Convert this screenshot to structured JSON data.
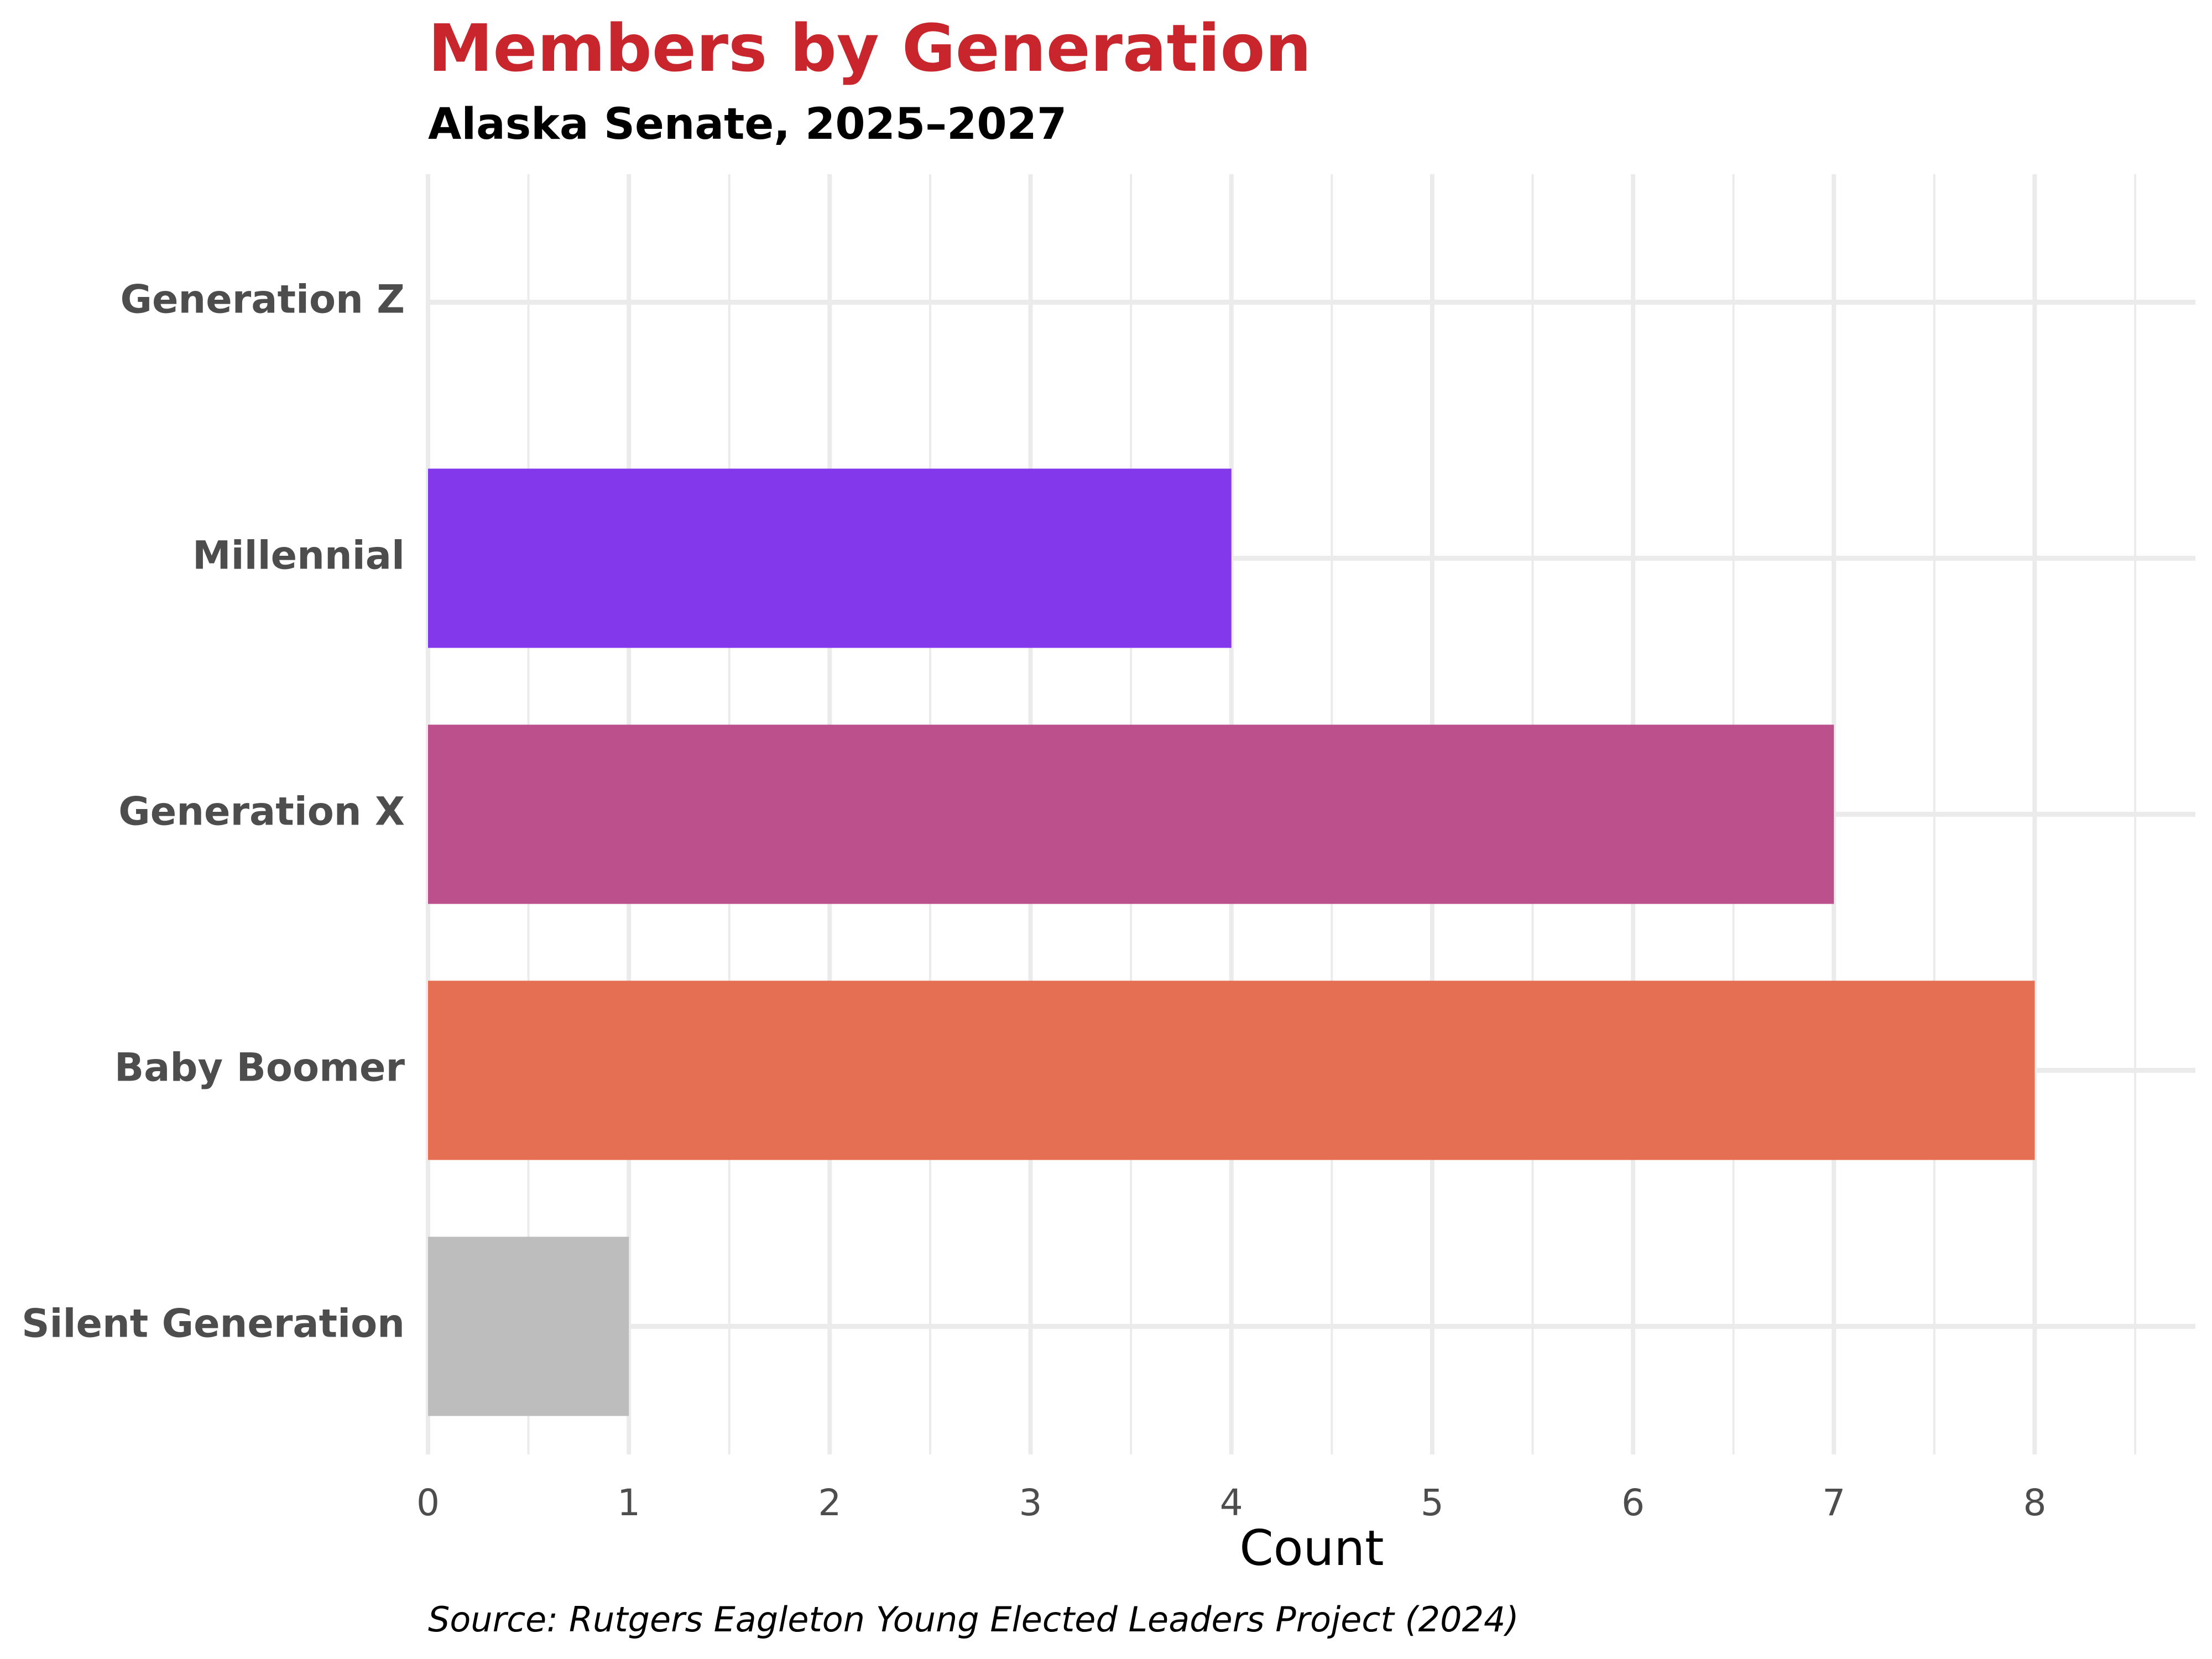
{
  "chart_data": {
    "type": "bar",
    "orientation": "horizontal",
    "title": "Members by Generation",
    "subtitle": "Alaska Senate, 2025–2027",
    "xlabel": "Count",
    "ylabel": "",
    "caption": "Source: Rutgers Eagleton Young Elected Leaders Project (2024)",
    "categories": [
      "Generation Z",
      "Millennial",
      "Generation X",
      "Baby Boomer",
      "Silent Generation"
    ],
    "values": [
      0,
      4,
      7,
      8,
      1
    ],
    "colors": [
      "#8338ec",
      "#8338ec",
      "#bc508d",
      "#e56f53",
      "#bdbdbd"
    ],
    "title_color": "#c8262c",
    "x_ticks": [
      "0",
      "1",
      "2",
      "3",
      "4",
      "5",
      "6",
      "7",
      "8"
    ],
    "xlim": [
      0,
      8.8
    ],
    "grid": true,
    "legend": "none"
  }
}
